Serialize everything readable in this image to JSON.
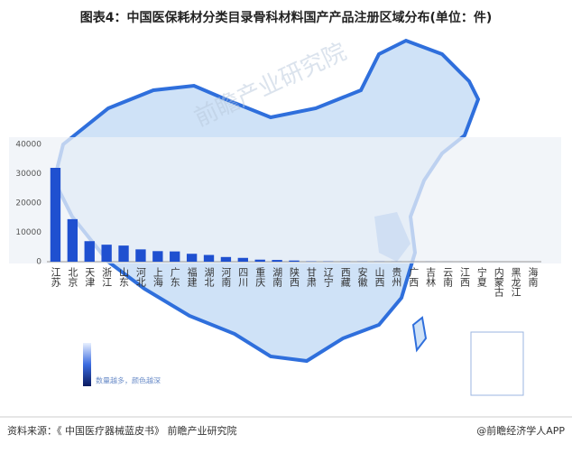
{
  "chart_data": {
    "type": "bar",
    "title": "图表4：中国医保耗材分类目录骨科材料国产产品注册区域分布(单位：件)",
    "categories": [
      "江苏",
      "北京",
      "天津",
      "浙江",
      "山东",
      "河北",
      "上海",
      "广东",
      "福建",
      "湖北",
      "河南",
      "四川",
      "重庆",
      "湖南",
      "陕西",
      "甘肃",
      "辽宁",
      "西藏",
      "安徽",
      "山西",
      "贵州",
      "广西",
      "吉林",
      "云南",
      "江西",
      "宁夏",
      "内蒙古",
      "黑龙江",
      "海南"
    ],
    "values": [
      32000,
      14500,
      7000,
      5800,
      5500,
      4200,
      3600,
      3500,
      2700,
      2300,
      1600,
      1300,
      700,
      600,
      400,
      100,
      80,
      60,
      50,
      40,
      30,
      20,
      20,
      10,
      10,
      10,
      5,
      5,
      5
    ],
    "color": "#1f50d0",
    "ylim": [
      0,
      40000
    ],
    "yticks": [
      0,
      10000,
      20000,
      30000,
      40000
    ],
    "grid": false,
    "legend_note": "数量越多，颜色越深",
    "watermark": "前瞻产业研究院",
    "source": "资料来源：《 中国医疗器械蓝皮书》 前瞻产业研究院",
    "brand": "@前瞻经济学人APP"
  }
}
